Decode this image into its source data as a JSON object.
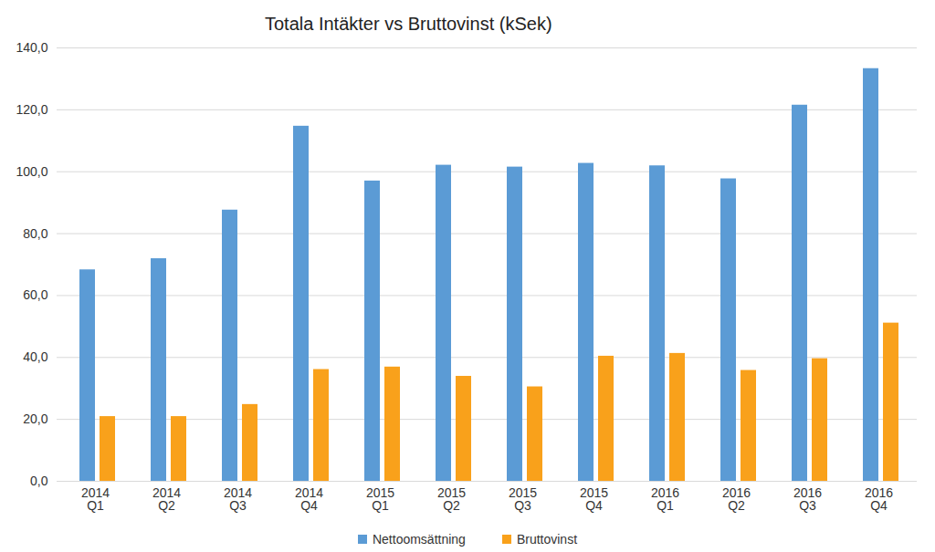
{
  "chart_data": {
    "type": "bar",
    "title": "Totala Intäkter vs Bruttovinst (kSek)",
    "categories": [
      "2014 Q1",
      "2014 Q2",
      "2014 Q3",
      "2014 Q4",
      "2015 Q1",
      "2015 Q2",
      "2015 Q3",
      "2015 Q4",
      "2016 Q1",
      "2016 Q2",
      "2016 Q3",
      "2016 Q4"
    ],
    "series": [
      {
        "name": "Nettoomsättning",
        "color": "#5b9bd5",
        "values": [
          68.3,
          71.9,
          87.6,
          114.7,
          97.0,
          102.1,
          101.5,
          102.7,
          101.9,
          97.7,
          121.5,
          133.3
        ]
      },
      {
        "name": "Bruttovinst",
        "color": "#f9a11b",
        "values": [
          20.9,
          20.9,
          24.8,
          36.1,
          36.9,
          33.9,
          30.5,
          40.4,
          41.3,
          35.8,
          39.6,
          51.1
        ]
      }
    ],
    "ylim": [
      0,
      140
    ],
    "yticks": [
      {
        "value": 0,
        "label": "0,0"
      },
      {
        "value": 20,
        "label": "20,0"
      },
      {
        "value": 40,
        "label": "40,0"
      },
      {
        "value": 60,
        "label": "60,0"
      },
      {
        "value": 80,
        "label": "80,0"
      },
      {
        "value": 100,
        "label": "100,0"
      },
      {
        "value": 120,
        "label": "120,0"
      },
      {
        "value": 140,
        "label": "140,0"
      }
    ],
    "grid": true,
    "legend": "bottom"
  }
}
